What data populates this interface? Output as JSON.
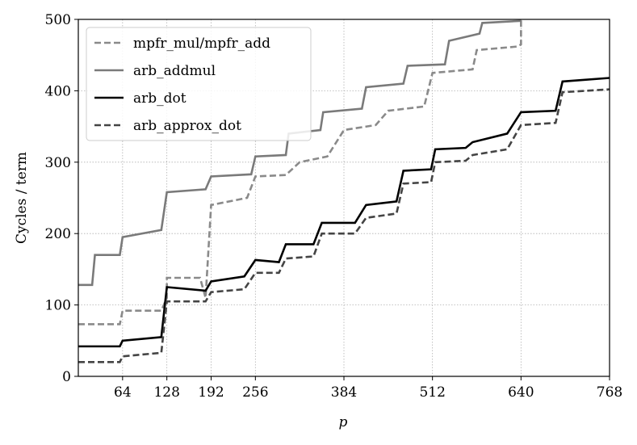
{
  "chart_data": {
    "type": "line",
    "xlabel": "p",
    "ylabel": "Cycles / term",
    "xlim": [
      0,
      768
    ],
    "ylim": [
      0,
      500
    ],
    "xticks": [
      64,
      128,
      192,
      256,
      384,
      512,
      640,
      768
    ],
    "yticks": [
      0,
      100,
      200,
      300,
      400,
      500
    ],
    "grid": true,
    "legend": "upper left",
    "series": [
      {
        "name": "mpfr_mul/mpfr_add",
        "color": "#8a8a8a",
        "dashed": true,
        "x": [
          0,
          60,
          64,
          120,
          128,
          128,
          176,
          184,
          192,
          244,
          256,
          300,
          320,
          360,
          384,
          430,
          448,
          500,
          512,
          570,
          576,
          635,
          640,
          640
        ],
        "values": [
          73,
          73,
          92,
          92,
          110,
          138,
          138,
          110,
          240,
          250,
          280,
          282,
          300,
          308,
          345,
          352,
          372,
          378,
          425,
          430,
          457,
          462,
          465,
          500
        ]
      },
      {
        "name": "arb_addmul",
        "color": "#7a7a7a",
        "dashed": false,
        "x": [
          0,
          20,
          24,
          60,
          64,
          120,
          128,
          184,
          192,
          250,
          256,
          300,
          304,
          350,
          354,
          410,
          416,
          470,
          476,
          530,
          536,
          580,
          584,
          640
        ],
        "values": [
          128,
          128,
          170,
          170,
          195,
          205,
          258,
          262,
          280,
          283,
          308,
          310,
          340,
          345,
          370,
          375,
          405,
          410,
          435,
          437,
          470,
          480,
          495,
          498
        ]
      },
      {
        "name": "arb_dot",
        "color": "#000000",
        "dashed": false,
        "x": [
          0,
          60,
          64,
          120,
          128,
          184,
          192,
          240,
          256,
          290,
          300,
          340,
          352,
          400,
          416,
          460,
          470,
          510,
          516,
          560,
          570,
          620,
          640,
          690,
          700,
          768
        ],
        "values": [
          42,
          42,
          50,
          55,
          125,
          120,
          133,
          140,
          163,
          160,
          185,
          185,
          215,
          215,
          240,
          245,
          288,
          290,
          318,
          320,
          328,
          340,
          370,
          372,
          413,
          418
        ]
      },
      {
        "name": "arb_approx_dot",
        "color": "#444444",
        "dashed": true,
        "x": [
          0,
          60,
          64,
          120,
          128,
          184,
          192,
          240,
          256,
          290,
          300,
          340,
          352,
          400,
          416,
          460,
          470,
          510,
          516,
          560,
          570,
          620,
          640,
          690,
          700,
          768
        ],
        "values": [
          20,
          20,
          28,
          33,
          105,
          105,
          118,
          122,
          145,
          145,
          165,
          168,
          200,
          200,
          222,
          228,
          270,
          272,
          300,
          302,
          310,
          318,
          352,
          355,
          398,
          402
        ]
      }
    ]
  }
}
